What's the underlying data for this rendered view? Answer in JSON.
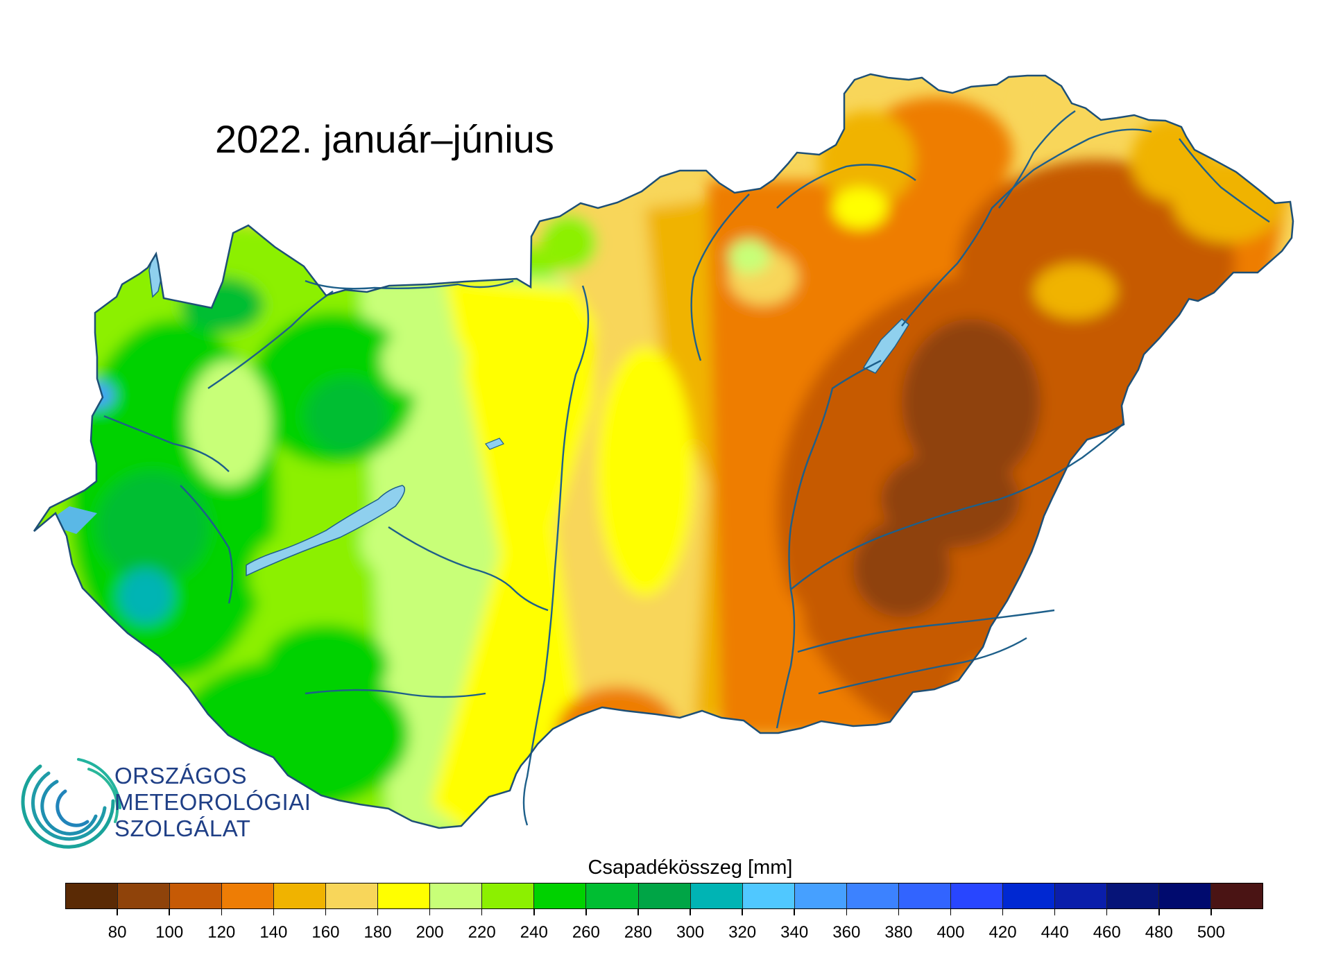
{
  "title": "2022. január–június",
  "logo": {
    "lines": [
      "ORSZÁGOS",
      "METEOROLÓGIAI",
      "SZOLGÁLAT"
    ],
    "icon": "omsz-circle-logo-icon",
    "color": "#1f3f86"
  },
  "legend": {
    "title": "Csapadékösszeg [mm]",
    "ticks": [
      "80",
      "100",
      "120",
      "140",
      "160",
      "180",
      "200",
      "220",
      "240",
      "260",
      "280",
      "300",
      "320",
      "340",
      "360",
      "380",
      "400",
      "420",
      "440",
      "460",
      "480",
      "500"
    ],
    "colors": [
      "#5a2a05",
      "#8f430a",
      "#c65a05",
      "#ee7d05",
      "#f0b300",
      "#f8d65a",
      "#ffff00",
      "#c8ff78",
      "#8cf000",
      "#00d200",
      "#00be32",
      "#00a546",
      "#00b4b4",
      "#50c8ff",
      "#46a0ff",
      "#3c82ff",
      "#3264ff",
      "#2846ff",
      "#0028d2",
      "#0a1eaa",
      "#061478",
      "#000a6e",
      "#4a1414"
    ]
  },
  "map": {
    "region": "Hungary",
    "regions_scale": {
      "darkbrown": "#8f430a",
      "brown": "#c65a05",
      "orange": "#ee7d05",
      "amber": "#f0b300",
      "lightorange": "#f8d65a",
      "yellow": "#ffff00",
      "lightgreen": "#c8ff78",
      "green": "#8cf000",
      "mediumgreen": "#00d200",
      "darkgreen": "#00be32",
      "teal": "#00a546",
      "cyan": "#00b4b4",
      "lake": "#8fd0ee",
      "river": "#1d5f8a",
      "border": "#1d4f76"
    }
  }
}
